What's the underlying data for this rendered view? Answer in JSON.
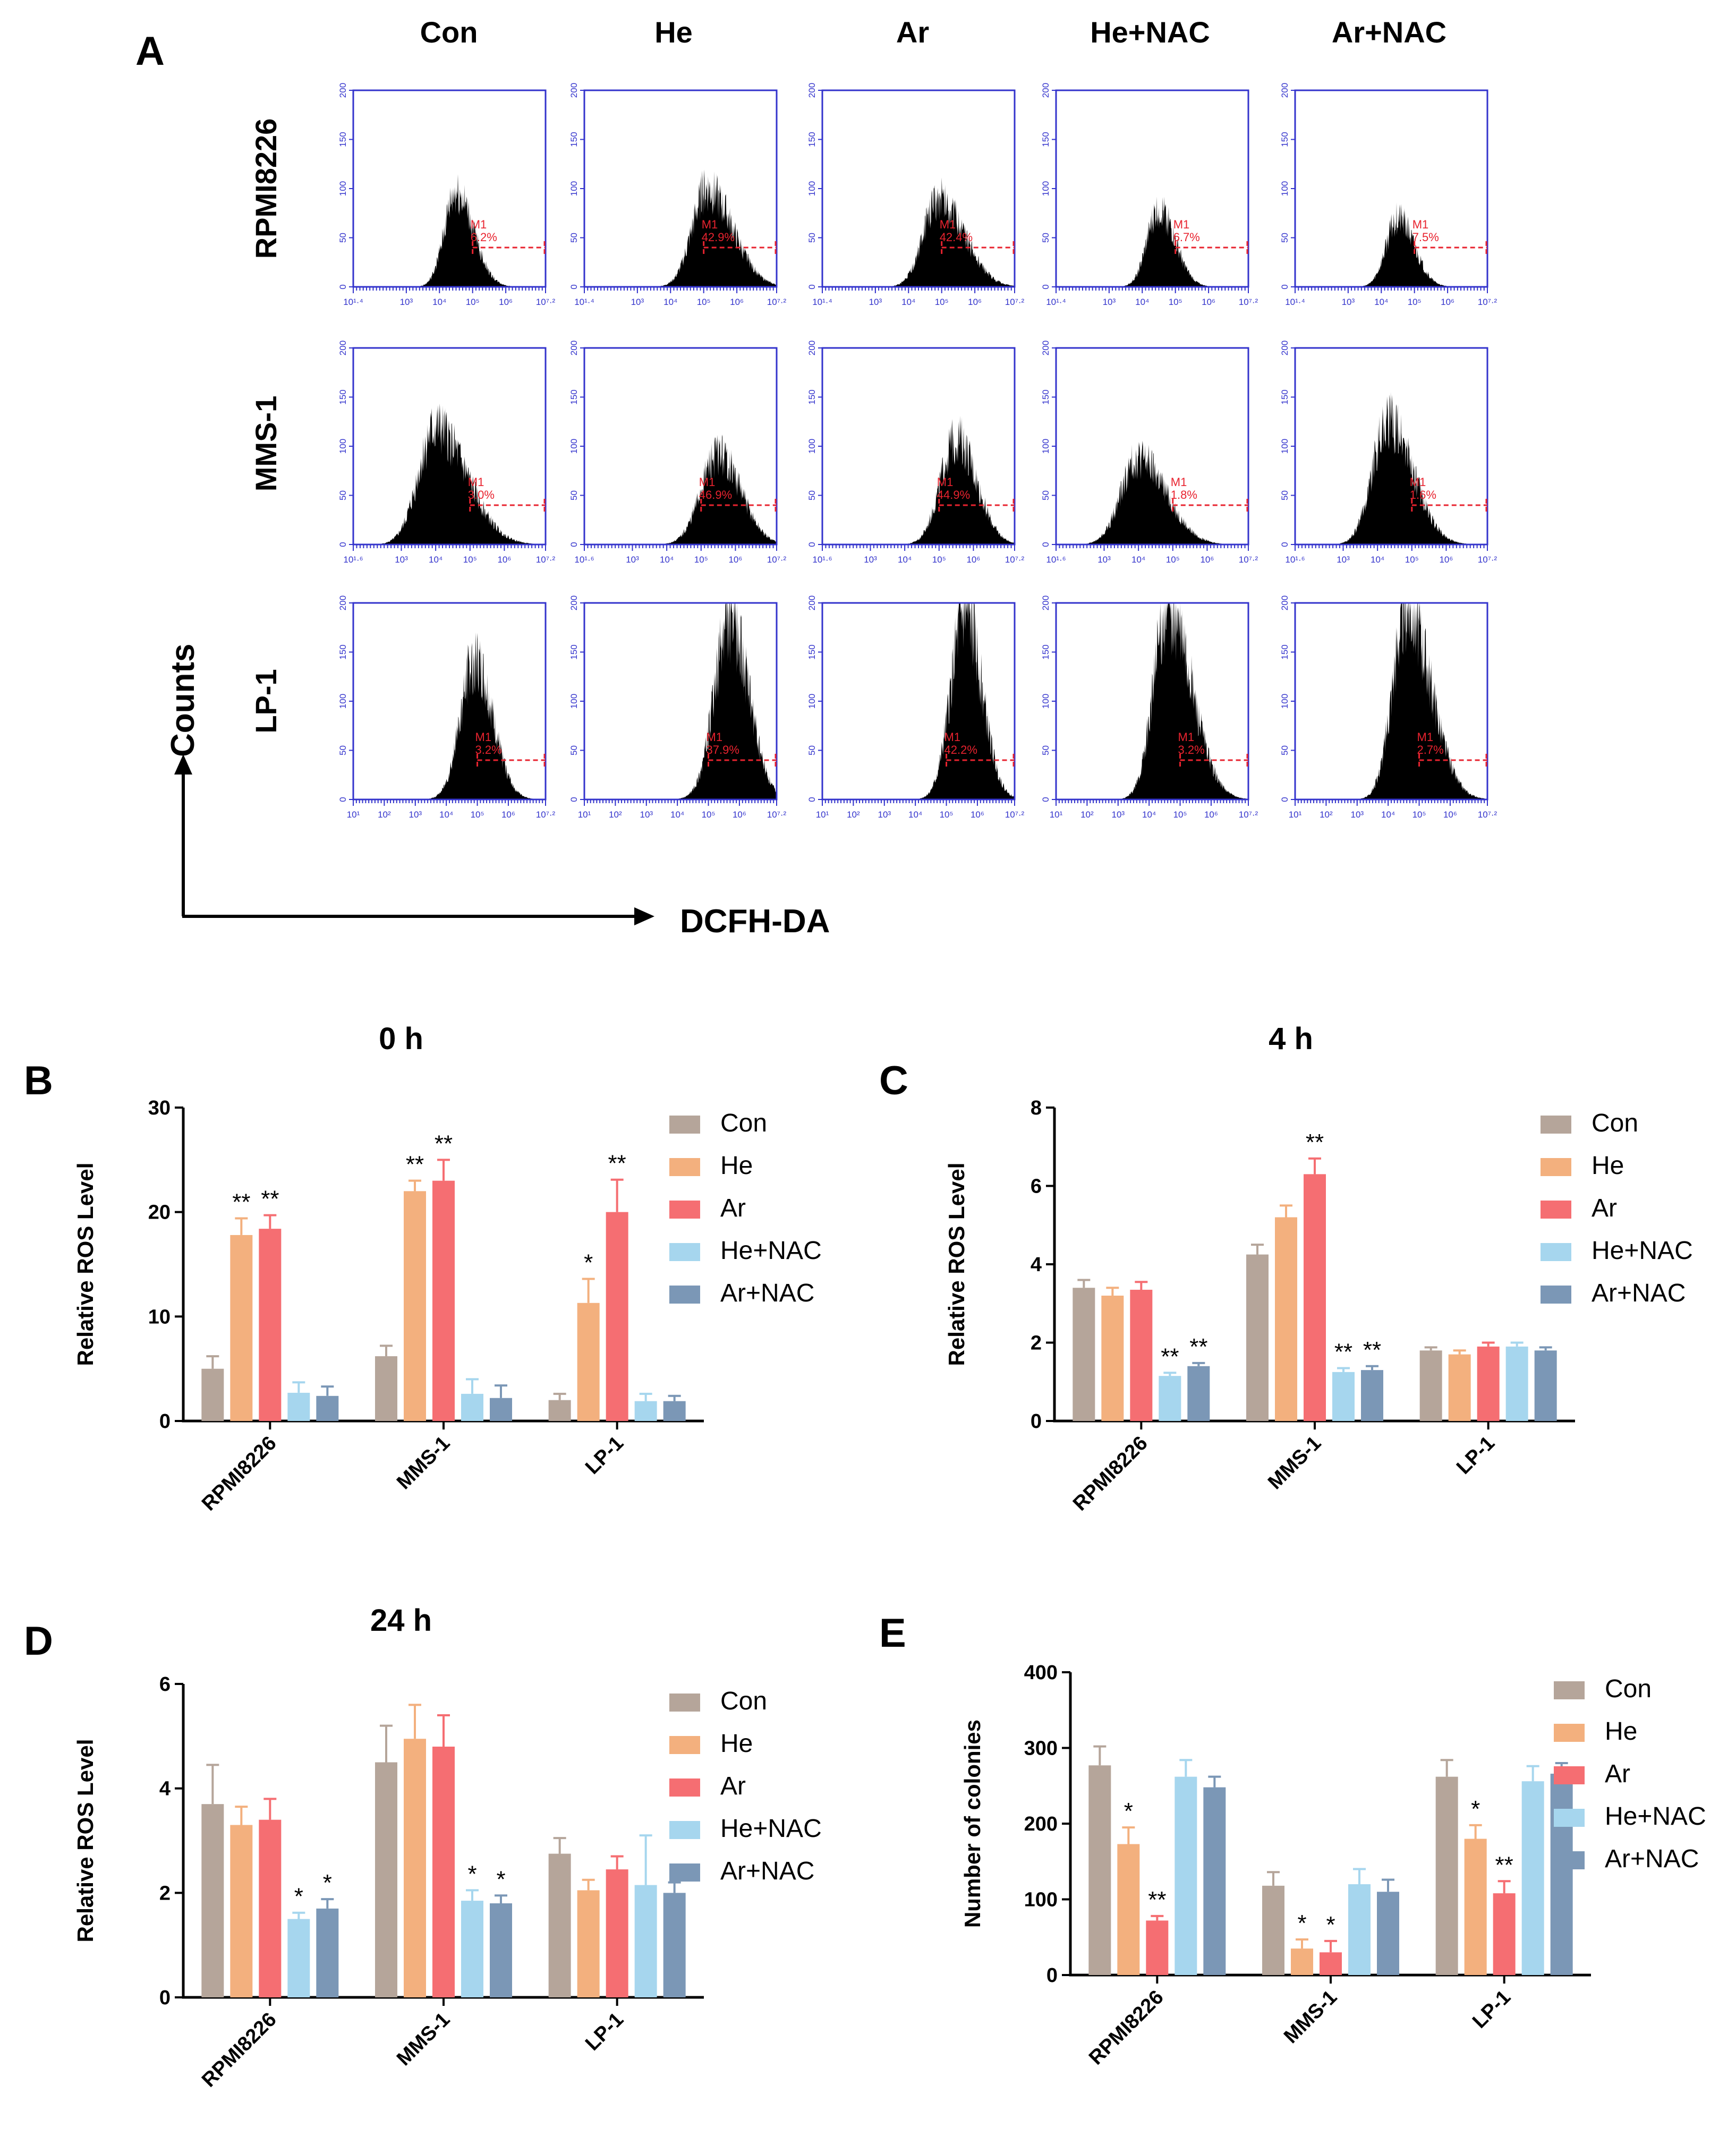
{
  "colors": {
    "Con": "#b5a59a",
    "He": "#f3b07e",
    "Ar": "#f56e72",
    "He+NAC": "#a6d6ee",
    "Ar+NAC": "#7b97b6"
  },
  "panelA": {
    "letter": "A",
    "columns": [
      "Con",
      "He",
      "Ar",
      "He+NAC",
      "Ar+NAC"
    ],
    "rows": [
      "RPMI8226",
      "MMS-1",
      "LP-1"
    ],
    "y_axis_label": "Counts",
    "x_axis_label": "DCFH-DA",
    "y_ticks": [
      "0",
      "50",
      "100",
      "150",
      "200"
    ],
    "x_ticks_by_row": [
      [
        "10¹·⁴",
        "10³",
        "10⁴",
        "10⁵",
        "10⁶",
        "10⁷·²"
      ],
      [
        "10¹·⁶",
        "10³",
        "10⁴",
        "10⁵",
        "10⁶",
        "10⁷·²"
      ],
      [
        "10¹",
        "10²",
        "10³",
        "10⁴",
        "10⁵",
        "10⁶",
        "10⁷·²"
      ]
    ],
    "gate_label": "M1",
    "histograms": [
      [
        {
          "peak_decade": 4.5,
          "width": 0.35,
          "height": 95,
          "skew": 0.5,
          "gate_pct": "6.2%"
        },
        {
          "peak_decade": 5.1,
          "width": 0.45,
          "height": 100,
          "skew": 0.7,
          "gate_pct": "42.9%"
        },
        {
          "peak_decade": 4.9,
          "width": 0.45,
          "height": 90,
          "skew": 0.7,
          "gate_pct": "42.4%"
        },
        {
          "peak_decade": 4.5,
          "width": 0.35,
          "height": 78,
          "skew": 0.4,
          "gate_pct": "6.7%"
        },
        {
          "peak_decade": 4.5,
          "width": 0.35,
          "height": 70,
          "skew": 0.4,
          "gate_pct": "7.5%"
        }
      ],
      [
        {
          "peak_decade": 4.0,
          "width": 0.5,
          "height": 118,
          "skew": 0.8,
          "gate_pct": "3.0%"
        },
        {
          "peak_decade": 5.5,
          "width": 0.5,
          "height": 92,
          "skew": 0.3,
          "gate_pct": "46.9%"
        },
        {
          "peak_decade": 5.5,
          "width": 0.45,
          "height": 108,
          "skew": 0.3,
          "gate_pct": "44.9%"
        },
        {
          "peak_decade": 4.0,
          "width": 0.5,
          "height": 88,
          "skew": 0.6,
          "gate_pct": "1.8%"
        },
        {
          "peak_decade": 4.3,
          "width": 0.45,
          "height": 125,
          "skew": 0.6,
          "gate_pct": "1.6%"
        }
      ],
      [
        {
          "peak_decade": 4.9,
          "width": 0.45,
          "height": 140,
          "skew": 0.3,
          "gate_pct": "3.2%"
        },
        {
          "peak_decade": 5.7,
          "width": 0.5,
          "height": 182,
          "skew": 0.2,
          "gate_pct": "37.9%"
        },
        {
          "peak_decade": 5.6,
          "width": 0.45,
          "height": 190,
          "skew": 0.2,
          "gate_pct": "42.2%"
        },
        {
          "peak_decade": 4.6,
          "width": 0.45,
          "height": 195,
          "skew": 0.7,
          "gate_pct": "3.2%"
        },
        {
          "peak_decade": 4.6,
          "width": 0.45,
          "height": 198,
          "skew": 0.7,
          "gate_pct": "2.7%"
        }
      ]
    ]
  },
  "chart_data": [
    {
      "panel": "B",
      "type": "bar",
      "title": "0 h",
      "ylabel": "Relative ROS Level",
      "ylim": [
        0,
        30
      ],
      "yticks": [
        0,
        10,
        20,
        30
      ],
      "categories": [
        "RPMI8226",
        "MMS-1",
        "LP-1"
      ],
      "series": [
        {
          "name": "Con",
          "values": [
            5.0,
            6.2,
            2.0
          ],
          "errors": [
            1.2,
            1.0,
            0.6
          ]
        },
        {
          "name": "He",
          "values": [
            17.8,
            22.0,
            11.3
          ],
          "errors": [
            1.6,
            1.0,
            2.3
          ]
        },
        {
          "name": "Ar",
          "values": [
            18.4,
            23.0,
            20.0
          ],
          "errors": [
            1.3,
            2.0,
            3.1
          ]
        },
        {
          "name": "He+NAC",
          "values": [
            2.7,
            2.6,
            1.9
          ],
          "errors": [
            1.0,
            1.4,
            0.7
          ]
        },
        {
          "name": "Ar+NAC",
          "values": [
            2.4,
            2.2,
            1.9
          ],
          "errors": [
            0.9,
            1.2,
            0.5
          ]
        }
      ],
      "significance": [
        {
          "category": 0,
          "series": 1,
          "label": "**"
        },
        {
          "category": 0,
          "series": 2,
          "label": "**"
        },
        {
          "category": 1,
          "series": 1,
          "label": "**"
        },
        {
          "category": 1,
          "series": 2,
          "label": "**"
        },
        {
          "category": 2,
          "series": 1,
          "label": "*"
        },
        {
          "category": 2,
          "series": 2,
          "label": "**"
        }
      ],
      "legend_position": "right"
    },
    {
      "panel": "C",
      "type": "bar",
      "title": "4 h",
      "ylabel": "Relative ROS Level",
      "ylim": [
        0,
        8
      ],
      "yticks": [
        0,
        2,
        4,
        6,
        8
      ],
      "categories": [
        "RPMI8226",
        "MMS-1",
        "LP-1"
      ],
      "series": [
        {
          "name": "Con",
          "values": [
            3.4,
            4.25,
            1.8
          ],
          "errors": [
            0.2,
            0.25,
            0.08
          ]
        },
        {
          "name": "He",
          "values": [
            3.2,
            5.2,
            1.7
          ],
          "errors": [
            0.2,
            0.3,
            0.1
          ]
        },
        {
          "name": "Ar",
          "values": [
            3.35,
            6.3,
            1.9
          ],
          "errors": [
            0.2,
            0.4,
            0.1
          ]
        },
        {
          "name": "He+NAC",
          "values": [
            1.15,
            1.25,
            1.9
          ],
          "errors": [
            0.08,
            0.1,
            0.1
          ]
        },
        {
          "name": "Ar+NAC",
          "values": [
            1.4,
            1.3,
            1.8
          ],
          "errors": [
            0.08,
            0.1,
            0.08
          ]
        }
      ],
      "significance": [
        {
          "category": 0,
          "series": 3,
          "label": "**"
        },
        {
          "category": 0,
          "series": 4,
          "label": "**"
        },
        {
          "category": 1,
          "series": 2,
          "label": "**"
        },
        {
          "category": 1,
          "series": 3,
          "label": "**"
        },
        {
          "category": 1,
          "series": 4,
          "label": "**"
        }
      ],
      "legend_position": "right"
    },
    {
      "panel": "D",
      "type": "bar",
      "title": "24 h",
      "ylabel": "Relative ROS Level",
      "ylim": [
        0,
        6
      ],
      "yticks": [
        0,
        2,
        4,
        6
      ],
      "categories": [
        "RPMI8226",
        "MMS-1",
        "LP-1"
      ],
      "series": [
        {
          "name": "Con",
          "values": [
            3.7,
            4.5,
            2.75
          ],
          "errors": [
            0.75,
            0.7,
            0.3
          ]
        },
        {
          "name": "He",
          "values": [
            3.3,
            4.95,
            2.05
          ],
          "errors": [
            0.35,
            0.65,
            0.2
          ]
        },
        {
          "name": "Ar",
          "values": [
            3.4,
            4.8,
            2.45
          ],
          "errors": [
            0.4,
            0.6,
            0.25
          ]
        },
        {
          "name": "He+NAC",
          "values": [
            1.5,
            1.85,
            2.15
          ],
          "errors": [
            0.12,
            0.2,
            0.95
          ]
        },
        {
          "name": "Ar+NAC",
          "values": [
            1.7,
            1.8,
            2.0
          ],
          "errors": [
            0.18,
            0.15,
            0.2
          ]
        }
      ],
      "significance": [
        {
          "category": 0,
          "series": 3,
          "label": "*"
        },
        {
          "category": 0,
          "series": 4,
          "label": "*"
        },
        {
          "category": 1,
          "series": 3,
          "label": "*"
        },
        {
          "category": 1,
          "series": 4,
          "label": "*"
        }
      ],
      "legend_position": "right"
    },
    {
      "panel": "E",
      "type": "bar",
      "title": "",
      "ylabel": "Number of colonies",
      "ylim": [
        0,
        400
      ],
      "yticks": [
        0,
        100,
        200,
        300,
        400
      ],
      "categories": [
        "RPMI8226",
        "MMS-1",
        "LP-1"
      ],
      "series": [
        {
          "name": "Con",
          "values": [
            277,
            118,
            262
          ],
          "errors": [
            25,
            18,
            22
          ]
        },
        {
          "name": "He",
          "values": [
            173,
            35,
            180
          ],
          "errors": [
            22,
            12,
            18
          ]
        },
        {
          "name": "Ar",
          "values": [
            72,
            30,
            108
          ],
          "errors": [
            6,
            15,
            16
          ]
        },
        {
          "name": "He+NAC",
          "values": [
            262,
            120,
            256
          ],
          "errors": [
            22,
            20,
            20
          ]
        },
        {
          "name": "Ar+NAC",
          "values": [
            248,
            110,
            266
          ],
          "errors": [
            14,
            16,
            14
          ]
        }
      ],
      "significance": [
        {
          "category": 0,
          "series": 1,
          "label": "*"
        },
        {
          "category": 0,
          "series": 2,
          "label": "**"
        },
        {
          "category": 1,
          "series": 1,
          "label": "*"
        },
        {
          "category": 1,
          "series": 2,
          "label": "*"
        },
        {
          "category": 2,
          "series": 1,
          "label": "*"
        },
        {
          "category": 2,
          "series": 2,
          "label": "**"
        }
      ],
      "legend_position": "right"
    }
  ]
}
